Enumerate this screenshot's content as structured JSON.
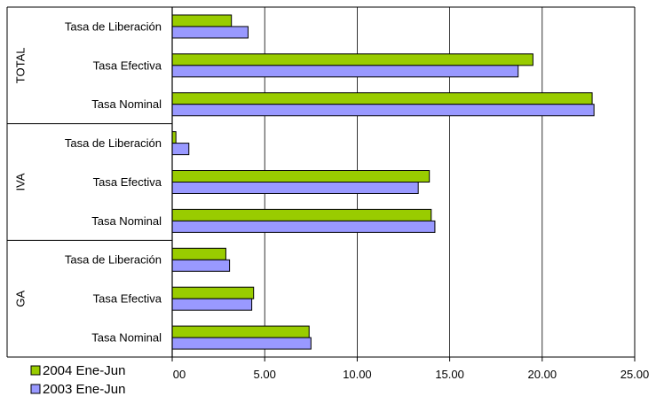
{
  "chart_data": {
    "type": "bar",
    "orientation": "horizontal",
    "groups": [
      {
        "name": "TOTAL",
        "categories": [
          "Tasa de Liberación",
          "Tasa Efectiva",
          "Tasa Nominal"
        ]
      },
      {
        "name": "IVA",
        "categories": [
          "Tasa de Liberación",
          "Tasa Efectiva",
          "Tasa Nominal"
        ]
      },
      {
        "name": "GA",
        "categories": [
          "Tasa de Liberación",
          "Tasa Efectiva",
          "Tasa Nominal"
        ]
      }
    ],
    "series": [
      {
        "name": "2004 Ene-Jun",
        "color": "#99CC00",
        "values": [
          3.2,
          19.5,
          22.7,
          0.2,
          13.9,
          14.0,
          2.9,
          4.4,
          7.4
        ]
      },
      {
        "name": "2003 Ene-Jun",
        "color": "#9999FF",
        "values": [
          4.1,
          18.7,
          22.8,
          0.9,
          13.3,
          14.2,
          3.1,
          4.3,
          7.5
        ]
      }
    ],
    "x_ticks": [
      "00",
      "5.00",
      "10.00",
      "15.00",
      "20.00",
      "25.00"
    ],
    "xlim": [
      0,
      25
    ],
    "grid": true,
    "legend_position": "bottom-left"
  }
}
